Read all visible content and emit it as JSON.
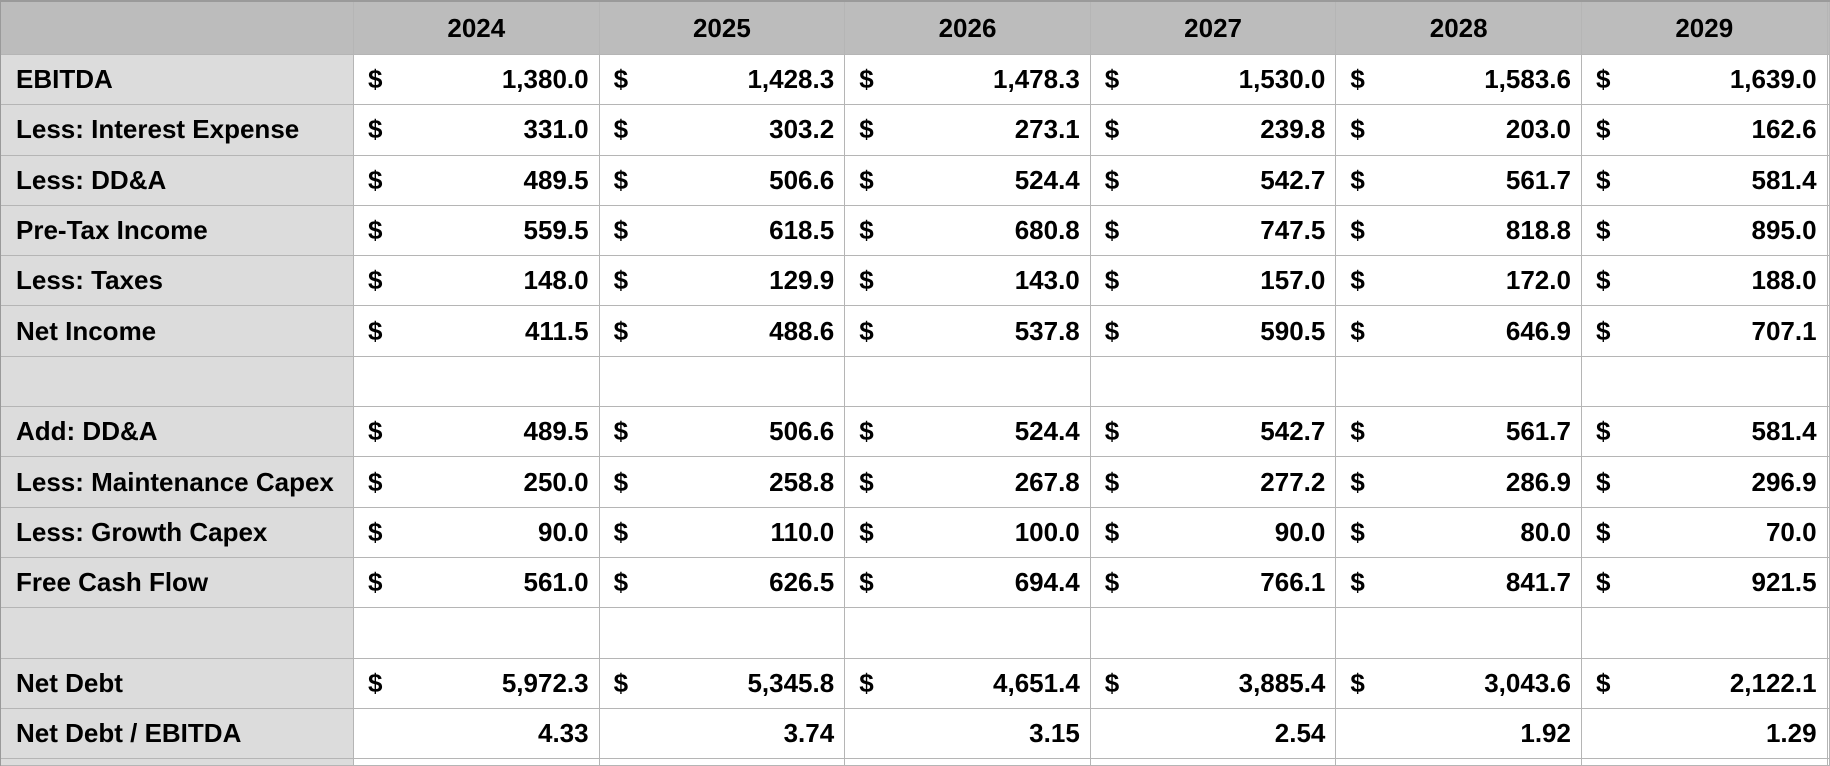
{
  "table": {
    "corner_label": "",
    "currency_symbol": "$",
    "columns": [
      "2024",
      "2025",
      "2026",
      "2027",
      "2028",
      "2029"
    ],
    "rows": [
      {
        "label": "EBITDA",
        "type": "currency",
        "values": [
          "1,380.0",
          "1,428.3",
          "1,478.3",
          "1,530.0",
          "1,583.6",
          "1,639.0"
        ]
      },
      {
        "label": "Less: Interest Expense",
        "type": "currency",
        "values": [
          "331.0",
          "303.2",
          "273.1",
          "239.8",
          "203.0",
          "162.6"
        ]
      },
      {
        "label": "Less: DD&A",
        "type": "currency",
        "values": [
          "489.5",
          "506.6",
          "524.4",
          "542.7",
          "561.7",
          "581.4"
        ]
      },
      {
        "label": "Pre-Tax Income",
        "type": "currency",
        "values": [
          "559.5",
          "618.5",
          "680.8",
          "747.5",
          "818.8",
          "895.0"
        ]
      },
      {
        "label": "Less: Taxes",
        "type": "currency",
        "values": [
          "148.0",
          "129.9",
          "143.0",
          "157.0",
          "172.0",
          "188.0"
        ]
      },
      {
        "label": "Net Income",
        "type": "currency",
        "values": [
          "411.5",
          "488.6",
          "537.8",
          "590.5",
          "646.9",
          "707.1"
        ]
      },
      {
        "label": "",
        "type": "blank",
        "values": [
          "",
          "",
          "",
          "",
          "",
          ""
        ]
      },
      {
        "label": "Add: DD&A",
        "type": "currency",
        "values": [
          "489.5",
          "506.6",
          "524.4",
          "542.7",
          "561.7",
          "581.4"
        ]
      },
      {
        "label": "Less: Maintenance Capex",
        "type": "currency",
        "values": [
          "250.0",
          "258.8",
          "267.8",
          "277.2",
          "286.9",
          "296.9"
        ]
      },
      {
        "label": "Less: Growth Capex",
        "type": "currency",
        "values": [
          "90.0",
          "110.0",
          "100.0",
          "90.0",
          "80.0",
          "70.0"
        ]
      },
      {
        "label": "Free Cash Flow",
        "type": "currency",
        "values": [
          "561.0",
          "626.5",
          "694.4",
          "766.1",
          "841.7",
          "921.5"
        ]
      },
      {
        "label": "",
        "type": "blank",
        "values": [
          "",
          "",
          "",
          "",
          "",
          ""
        ]
      },
      {
        "label": "Net Debt",
        "type": "currency",
        "values": [
          "5,972.3",
          "5,345.8",
          "4,651.4",
          "3,885.4",
          "3,043.6",
          "2,122.1"
        ]
      },
      {
        "label": "Net Debt / EBITDA",
        "type": "ratio",
        "values": [
          "4.33",
          "3.74",
          "3.15",
          "2.54",
          "1.92",
          "1.29"
        ]
      },
      {
        "label": "",
        "type": "partial",
        "values": [
          "",
          "",
          "",
          "",
          "",
          ""
        ]
      }
    ]
  },
  "colors": {
    "header_bg": "#bcbcbc",
    "label_bg": "#dcdcdc",
    "cell_bg": "#ffffff",
    "grid_line": "#b5b5b5",
    "header_line": "#a2a2a2",
    "header_divider": "#474747",
    "label_divider": "#1a1a1a",
    "outer_line": "#9a9a9a",
    "text_color": "#000000"
  }
}
